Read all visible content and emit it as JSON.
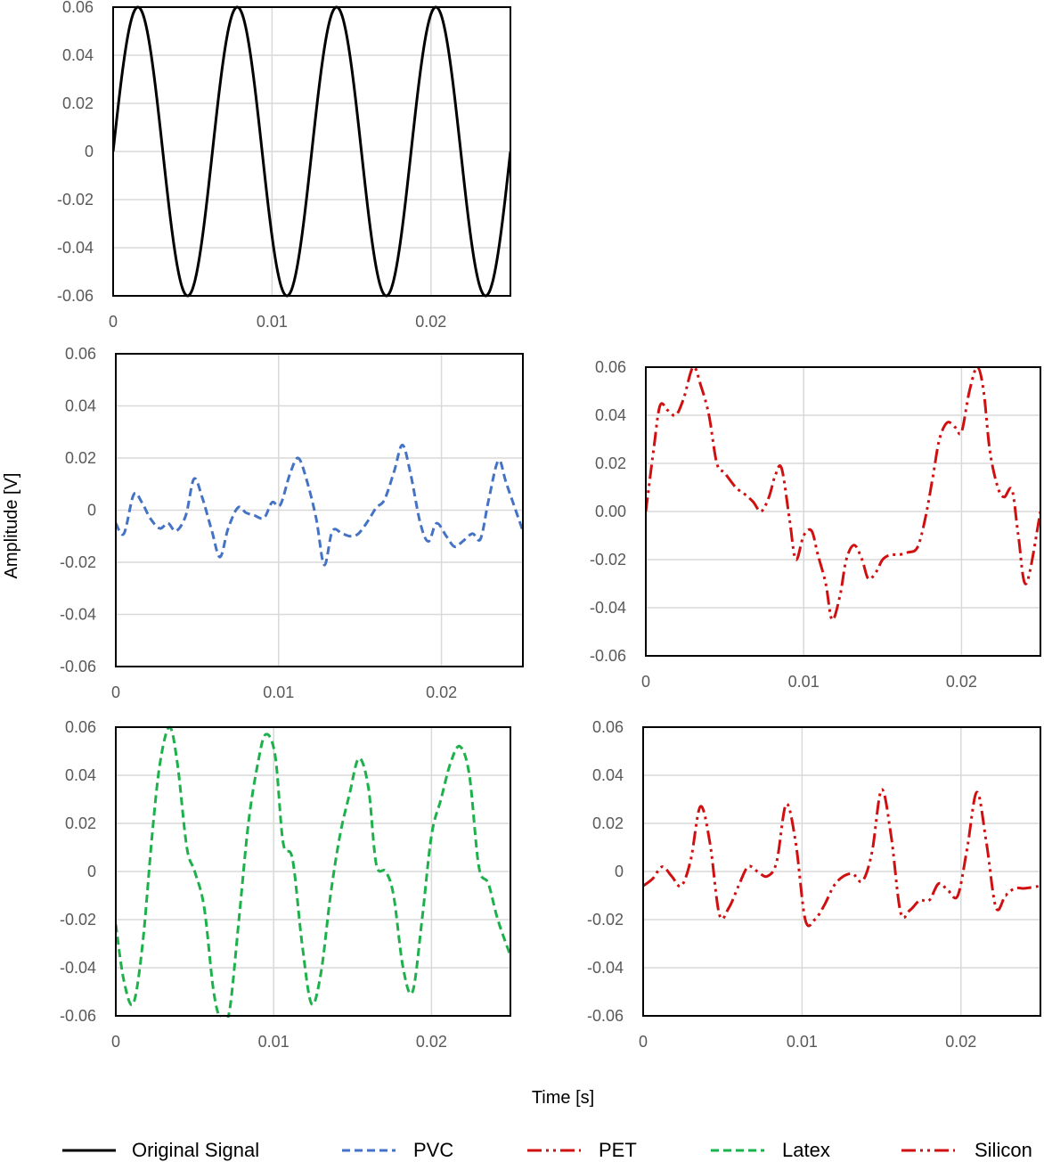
{
  "figure": {
    "ylabel": "Amplitude [V]",
    "xlabel": "Time [s]"
  },
  "legend": [
    {
      "label": "Original Signal",
      "color": "#000000",
      "dash": "solid"
    },
    {
      "label": "PVC",
      "color": "#4472C4",
      "dash": "dashed"
    },
    {
      "label": "PET",
      "color": "#D01010",
      "dash": "dash-dot-dot"
    },
    {
      "label": "Latex",
      "color": "#1DB14B",
      "dash": "dashed"
    },
    {
      "label": "Silicon",
      "color": "#D01010",
      "dash": "dash-dot-dot"
    }
  ],
  "chart_data": [
    {
      "type": "line",
      "series": [
        {
          "name": "Original Signal",
          "color": "#000000",
          "dash": "solid"
        }
      ],
      "function": {
        "kind": "sine",
        "amplitude": 0.06,
        "frequency_hz": 160
      },
      "xlim": [
        0,
        0.025
      ],
      "ylim": [
        -0.06,
        0.06
      ],
      "xticks": [
        "0",
        "0.01",
        "0.02"
      ],
      "yticks": [
        "0.06",
        "0.04",
        "0.02",
        "0",
        "-0.02",
        "-0.04",
        "-0.06"
      ],
      "grid": true
    },
    {
      "type": "line",
      "series": [
        {
          "name": "PVC",
          "color": "#4472C4",
          "dash": "dashed",
          "x": [
            0,
            0.0005,
            0.0011,
            0.0016,
            0.0021,
            0.0027,
            0.0032,
            0.0037,
            0.0043,
            0.0048,
            0.0053,
            0.0059,
            0.0064,
            0.0069,
            0.0075,
            0.008,
            0.0085,
            0.0091,
            0.0096,
            0.0101,
            0.0107,
            0.0112,
            0.0117,
            0.0123,
            0.0128,
            0.0133,
            0.0139,
            0.0144,
            0.0149,
            0.0155,
            0.016,
            0.0165,
            0.0171,
            0.0176,
            0.0181,
            0.0187,
            0.0192,
            0.0197,
            0.0203,
            0.0208,
            0.0213,
            0.0219,
            0.0224,
            0.0229,
            0.0235,
            0.024,
            0.025
          ],
          "y": [
            -0.005,
            -0.009,
            0.006,
            0.003,
            -0.003,
            -0.007,
            -0.005,
            -0.008,
            -0.002,
            0.012,
            0.005,
            -0.008,
            -0.018,
            -0.007,
            0.001,
            -0.001,
            -0.002,
            -0.003,
            0.003,
            0.002,
            0.014,
            0.02,
            0.012,
            -0.003,
            -0.021,
            -0.008,
            -0.009,
            -0.01,
            -0.009,
            -0.004,
            0.001,
            0.004,
            0.015,
            0.025,
            0.014,
            -0.005,
            -0.012,
            -0.005,
            -0.01,
            -0.014,
            -0.012,
            -0.009,
            -0.011,
            0.004,
            0.019,
            0.01,
            -0.008
          ]
        }
      ],
      "xlim": [
        0,
        0.025
      ],
      "ylim": [
        -0.06,
        0.06
      ],
      "xticks": [
        "0",
        "0.01",
        "0.02"
      ],
      "yticks": [
        "0.06",
        "0.04",
        "0.02",
        "0",
        "-0.02",
        "-0.04",
        "-0.06"
      ],
      "grid": true
    },
    {
      "type": "line",
      "series": [
        {
          "name": "PET",
          "color": "#D01010",
          "dash": "dash-dot-dot",
          "x": [
            0,
            0.0005,
            0.0009,
            0.0014,
            0.0019,
            0.0024,
            0.003,
            0.0035,
            0.004,
            0.0045,
            0.005,
            0.0057,
            0.0063,
            0.0068,
            0.0073,
            0.0078,
            0.0082,
            0.0086,
            0.0091,
            0.0095,
            0.01,
            0.0105,
            0.0109,
            0.0114,
            0.0118,
            0.0123,
            0.0127,
            0.0132,
            0.0137,
            0.0141,
            0.0146,
            0.015,
            0.0155,
            0.016,
            0.0166,
            0.0172,
            0.0177,
            0.0182,
            0.0186,
            0.0191,
            0.0196,
            0.02,
            0.0205,
            0.021,
            0.0214,
            0.0218,
            0.0223,
            0.0227,
            0.0232,
            0.0236,
            0.0241,
            0.025
          ],
          "y": [
            0,
            0.026,
            0.044,
            0.042,
            0.04,
            0.047,
            0.06,
            0.052,
            0.04,
            0.02,
            0.016,
            0.01,
            0.007,
            0.004,
            0.0,
            0.006,
            0.015,
            0.018,
            -0.003,
            -0.02,
            -0.01,
            -0.008,
            -0.018,
            -0.03,
            -0.045,
            -0.035,
            -0.02,
            -0.014,
            -0.02,
            -0.028,
            -0.025,
            -0.02,
            -0.018,
            -0.018,
            -0.017,
            -0.015,
            -0.003,
            0.015,
            0.03,
            0.037,
            0.035,
            0.033,
            0.05,
            0.06,
            0.05,
            0.025,
            0.01,
            0.006,
            0.009,
            -0.01,
            -0.03,
            0.0
          ]
        }
      ],
      "xlim": [
        0,
        0.025
      ],
      "ylim": [
        -0.06,
        0.06
      ],
      "xticks": [
        "0",
        "0.01",
        "0.02"
      ],
      "yticks": [
        "0.06",
        "0.04",
        "0.02",
        "0.00",
        "-0.02",
        "-0.04",
        "-0.06"
      ],
      "grid": true
    },
    {
      "type": "line",
      "series": [
        {
          "name": "Latex",
          "color": "#1DB14B",
          "dash": "dashed",
          "x": [
            0,
            0.0005,
            0.0011,
            0.0017,
            0.0023,
            0.0028,
            0.0034,
            0.0039,
            0.0045,
            0.005,
            0.0056,
            0.0062,
            0.0067,
            0.0072,
            0.0078,
            0.0084,
            0.009,
            0.0095,
            0.0101,
            0.0106,
            0.0112,
            0.0118,
            0.0124,
            0.013,
            0.0136,
            0.0142,
            0.0148,
            0.0154,
            0.016,
            0.0165,
            0.0171,
            0.0176,
            0.0182,
            0.0188,
            0.0194,
            0.02,
            0.0206,
            0.0212,
            0.0218,
            0.0224,
            0.023,
            0.0236,
            0.0242,
            0.025
          ],
          "y": [
            -0.022,
            -0.045,
            -0.055,
            -0.03,
            0.015,
            0.045,
            0.06,
            0.045,
            0.01,
            0.0,
            -0.015,
            -0.05,
            -0.062,
            -0.058,
            -0.02,
            0.02,
            0.045,
            0.057,
            0.048,
            0.012,
            0.005,
            -0.03,
            -0.055,
            -0.042,
            -0.01,
            0.015,
            0.032,
            0.047,
            0.035,
            0.003,
            0.0,
            -0.01,
            -0.04,
            -0.05,
            -0.02,
            0.015,
            0.03,
            0.045,
            0.052,
            0.04,
            0.002,
            -0.005,
            -0.02,
            -0.035
          ]
        }
      ],
      "xlim": [
        0,
        0.025
      ],
      "ylim": [
        -0.06,
        0.06
      ],
      "xticks": [
        "0",
        "0.01",
        "0.02"
      ],
      "yticks": [
        "0.06",
        "0.04",
        "0.02",
        "0",
        "-0.02",
        "-0.04",
        "-0.06"
      ],
      "grid": true
    },
    {
      "type": "line",
      "series": [
        {
          "name": "Silicon",
          "color": "#D01010",
          "dash": "dash-dot-dot",
          "x": [
            0,
            0.0006,
            0.0012,
            0.0018,
            0.0024,
            0.003,
            0.0036,
            0.0042,
            0.0048,
            0.0054,
            0.006,
            0.0066,
            0.0072,
            0.0078,
            0.0084,
            0.009,
            0.0096,
            0.0102,
            0.0108,
            0.0114,
            0.012,
            0.0126,
            0.0132,
            0.0138,
            0.0144,
            0.015,
            0.0156,
            0.0162,
            0.0168,
            0.0174,
            0.018,
            0.0186,
            0.0192,
            0.0198,
            0.0204,
            0.021,
            0.0216,
            0.0222,
            0.0228,
            0.0234,
            0.024,
            0.025
          ],
          "y": [
            -0.006,
            -0.003,
            0.002,
            -0.002,
            -0.006,
            0.005,
            0.027,
            0.012,
            -0.018,
            -0.015,
            -0.006,
            0.002,
            0.0,
            -0.002,
            0.004,
            0.028,
            0.012,
            -0.02,
            -0.02,
            -0.014,
            -0.006,
            -0.002,
            -0.001,
            -0.004,
            0.008,
            0.034,
            0.015,
            -0.017,
            -0.016,
            -0.012,
            -0.012,
            -0.005,
            -0.008,
            -0.01,
            0.01,
            0.033,
            0.012,
            -0.015,
            -0.01,
            -0.007,
            -0.007,
            -0.006
          ]
        }
      ],
      "xlim": [
        0,
        0.025
      ],
      "ylim": [
        -0.06,
        0.06
      ],
      "xticks": [
        "0",
        "0.01",
        "0.02"
      ],
      "yticks": [
        "0.06",
        "0.04",
        "0.02",
        "0",
        "-0.02",
        "-0.04",
        "-0.06"
      ],
      "grid": true
    }
  ]
}
